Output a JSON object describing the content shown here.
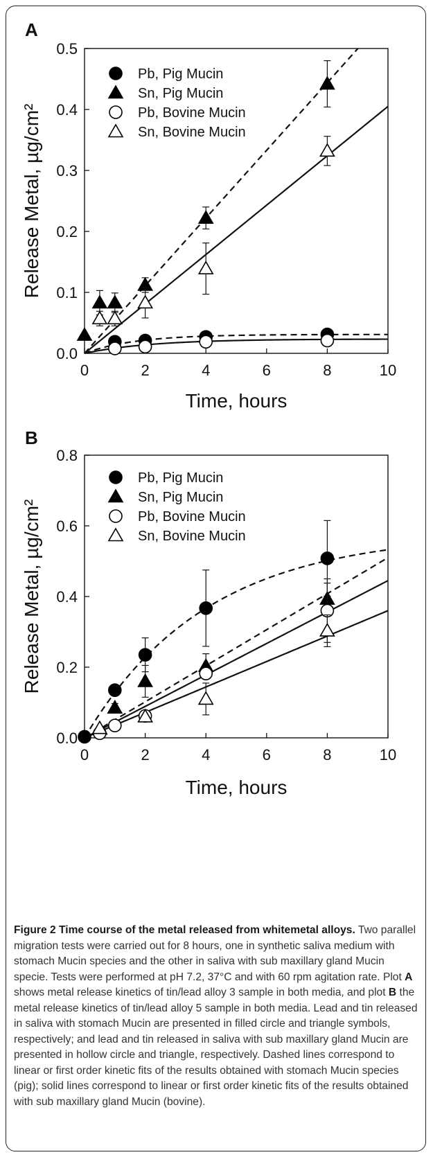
{
  "chart_data": [
    {
      "panel": "A",
      "type": "scatter",
      "xlabel": "Time, hours",
      "ylabel": "Release Metal, µg/cm²",
      "xlim": [
        0,
        10
      ],
      "ylim": [
        0,
        0.5
      ],
      "xticks": [
        "0",
        "2",
        "4",
        "6",
        "8",
        "10"
      ],
      "yticks": [
        "0.0",
        "0.1",
        "0.2",
        "0.3",
        "0.4",
        "0.5"
      ],
      "legend_position": "top-left",
      "series": [
        {
          "name": "Pb, Pig Mucin",
          "marker": "circle-filled",
          "fit": "dashed",
          "points": [
            {
              "x": 1,
              "y": 0.019
            },
            {
              "x": 2,
              "y": 0.021
            },
            {
              "x": 4,
              "y": 0.027
            },
            {
              "x": 8,
              "y": 0.031
            }
          ],
          "errors": [
            0,
            0,
            0,
            0
          ]
        },
        {
          "name": "Sn, Pig Mucin",
          "marker": "triangle-filled",
          "fit": "dashed",
          "points": [
            {
              "x": 0,
              "y": 0.03
            },
            {
              "x": 0.5,
              "y": 0.083
            },
            {
              "x": 1,
              "y": 0.083
            },
            {
              "x": 2,
              "y": 0.112
            },
            {
              "x": 4,
              "y": 0.222
            },
            {
              "x": 8,
              "y": 0.442
            }
          ],
          "errors": [
            0,
            0.02,
            0.016,
            0.012,
            0.018,
            0.038
          ]
        },
        {
          "name": "Pb, Bovine Mucin",
          "marker": "circle-open",
          "fit": "solid",
          "points": [
            {
              "x": 1,
              "y": 0.008
            },
            {
              "x": 2,
              "y": 0.011
            },
            {
              "x": 4,
              "y": 0.019
            },
            {
              "x": 8,
              "y": 0.021
            }
          ],
          "errors": [
            0,
            0,
            0,
            0
          ]
        },
        {
          "name": "Sn, Bovine Mucin",
          "marker": "triangle-open",
          "fit": "solid",
          "points": [
            {
              "x": 0.5,
              "y": 0.057
            },
            {
              "x": 1,
              "y": 0.057
            },
            {
              "x": 2,
              "y": 0.083
            },
            {
              "x": 4,
              "y": 0.139
            },
            {
              "x": 8,
              "y": 0.332
            }
          ],
          "errors": [
            0.012,
            0.012,
            0.025,
            0.042,
            0.024
          ]
        }
      ]
    },
    {
      "panel": "B",
      "type": "scatter",
      "xlabel": "Time, hours",
      "ylabel": "Release Metal, µg/cm²",
      "xlim": [
        0,
        10
      ],
      "ylim": [
        0,
        0.8
      ],
      "xticks": [
        "0",
        "2",
        "4",
        "6",
        "8",
        "10"
      ],
      "yticks": [
        "0.0",
        "0.2",
        "0.4",
        "0.6",
        "0.8"
      ],
      "legend_position": "top-left",
      "series": [
        {
          "name": "Pb, Pig Mucin",
          "marker": "circle-filled",
          "fit": "dashed",
          "points": [
            {
              "x": 0,
              "y": 0.003
            },
            {
              "x": 1,
              "y": 0.135
            },
            {
              "x": 2,
              "y": 0.235
            },
            {
              "x": 4,
              "y": 0.367
            },
            {
              "x": 8,
              "y": 0.508
            }
          ],
          "errors": [
            0,
            0.012,
            0.048,
            0.108,
            0.107
          ]
        },
        {
          "name": "Sn, Pig Mucin",
          "marker": "triangle-filled",
          "fit": "dashed",
          "points": [
            {
              "x": 0.5,
              "y": 0.025
            },
            {
              "x": 1,
              "y": 0.085
            },
            {
              "x": 2,
              "y": 0.16
            },
            {
              "x": 4,
              "y": 0.203
            },
            {
              "x": 8,
              "y": 0.393
            }
          ],
          "errors": [
            0,
            0.012,
            0.045,
            0.035,
            0.045
          ]
        },
        {
          "name": "Pb, Bovine Mucin",
          "marker": "circle-open",
          "fit": "solid",
          "points": [
            {
              "x": 0.5,
              "y": 0.013
            },
            {
              "x": 1,
              "y": 0.035
            },
            {
              "x": 2,
              "y": 0.062
            },
            {
              "x": 4,
              "y": 0.182
            },
            {
              "x": 8,
              "y": 0.36
            }
          ],
          "errors": [
            0,
            0,
            0.008,
            0.015,
            0.09
          ]
        },
        {
          "name": "Sn, Bovine Mucin",
          "marker": "triangle-open",
          "fit": "solid",
          "points": [
            {
              "x": 0.5,
              "y": 0.027
            },
            {
              "x": 2,
              "y": 0.06
            },
            {
              "x": 4,
              "y": 0.11
            },
            {
              "x": 8,
              "y": 0.303
            }
          ],
          "errors": [
            0,
            0,
            0.045,
            0.045
          ]
        }
      ]
    }
  ],
  "caption": {
    "title": "Figure 2 Time course of the metal released from whitemetal alloys.",
    "body": " Two parallel migration tests were carried out for 8 hours, one in synthetic saliva medium with stomach Mucin species and the other in saliva with sub maxillary gland Mucin specie. Tests were performed at pH 7.2, 37°C and with 60 rpm agitation rate. Plot ",
    "plot_a": "A",
    "mid": " shows metal release kinetics of tin/lead alloy 3 sample in both media, and plot ",
    "plot_b": "B",
    "tail": " the metal release kinetics of tin/lead alloy 5 sample in both media. Lead and tin released in saliva with stomach Mucin are presented in filled circle and triangle symbols, respectively; and lead and tin released in saliva with sub maxillary gland Mucin are presented in hollow circle and triangle, respectively. Dashed lines correspond to linear or first order kinetic fits of the results obtained with stomach Mucin species (pig); solid lines correspond to linear or first order kinetic fits of the results obtained with sub maxillary gland Mucin (bovine)."
  }
}
